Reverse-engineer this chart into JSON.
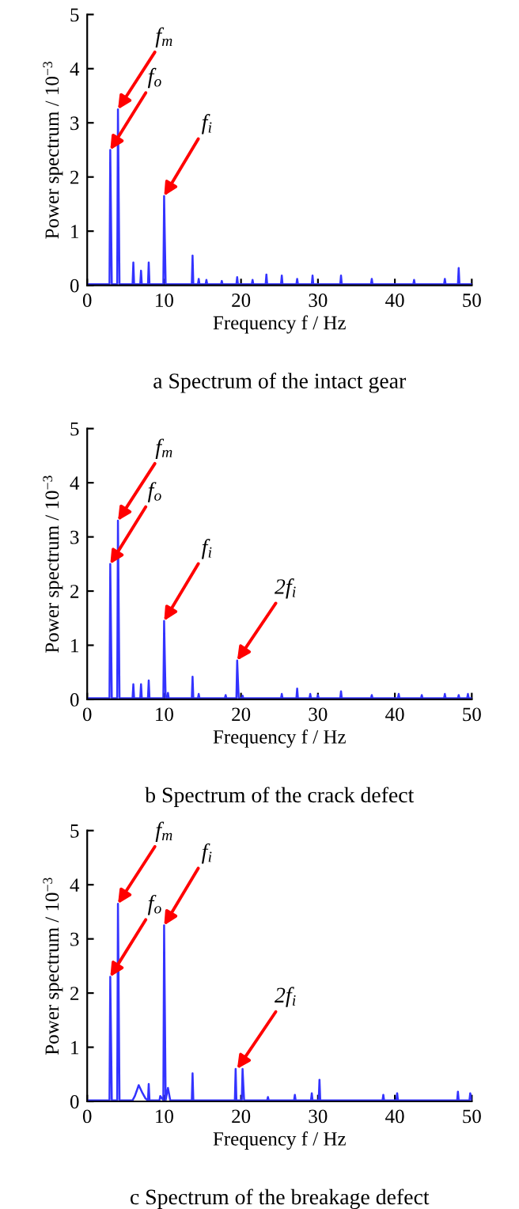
{
  "chart_data": [
    {
      "type": "line",
      "title": "a Spectrum of the intact gear",
      "xlabel": "Frequency f / Hz",
      "ylabel": "Power spectrum / 10$^{−3}$",
      "xlim": [
        0,
        50
      ],
      "ylim": [
        0,
        5
      ],
      "xticks": [
        0,
        10,
        20,
        30,
        40,
        50
      ],
      "yticks": [
        0,
        1,
        2,
        3,
        4,
        5
      ],
      "x": [
        0,
        2.9,
        3.0,
        3.1,
        3.2,
        3.9,
        4.0,
        4.1,
        4.2,
        5.9,
        6.0,
        6.1,
        6.9,
        7.0,
        7.1,
        7.9,
        8.0,
        8.1,
        9.9,
        10.0,
        10.1,
        10.2,
        13.6,
        13.7,
        13.8,
        14.4,
        14.5,
        14.6,
        15.4,
        15.5,
        15.6,
        17.4,
        17.5,
        17.6,
        19.4,
        19.5,
        19.6,
        21.4,
        21.5,
        21.6,
        23.2,
        23.3,
        23.4,
        25.2,
        25.3,
        25.4,
        27.2,
        27.3,
        27.4,
        29.2,
        29.3,
        29.4,
        32.9,
        33.0,
        33.1,
        36.9,
        37.0,
        37.1,
        42.4,
        42.5,
        42.6,
        46.4,
        46.5,
        46.6,
        48.2,
        48.3,
        48.4,
        50
      ],
      "series": [
        {
          "color": "#3333ff",
          "values": [
            0.02,
            0.02,
            2.5,
            1.25,
            0.02,
            0.02,
            3.25,
            1.6,
            0.02,
            0.02,
            0.42,
            0.02,
            0.02,
            0.27,
            0.02,
            0.02,
            0.42,
            0.02,
            0.02,
            1.65,
            0.8,
            0.02,
            0.02,
            0.55,
            0.02,
            0.02,
            0.12,
            0.02,
            0.02,
            0.1,
            0.02,
            0.02,
            0.08,
            0.02,
            0.02,
            0.15,
            0.02,
            0.02,
            0.1,
            0.02,
            0.02,
            0.2,
            0.02,
            0.02,
            0.18,
            0.02,
            0.02,
            0.12,
            0.02,
            0.02,
            0.18,
            0.02,
            0.02,
            0.18,
            0.02,
            0.02,
            0.12,
            0.02,
            0.02,
            0.1,
            0.02,
            0.02,
            0.12,
            0.02,
            0.02,
            0.32,
            0.02,
            0.02
          ]
        }
      ],
      "annotations": [
        {
          "text": "f$_{m}$",
          "x": 4.0,
          "y": 3.25
        },
        {
          "text": "f$_{o}$",
          "x": 3.0,
          "y": 2.5
        },
        {
          "text": "f$_{i}$",
          "x": 10.0,
          "y": 1.65
        }
      ]
    },
    {
      "type": "line",
      "title": "b Spectrum of the crack defect",
      "xlabel": "Frequency f / Hz",
      "ylabel": "Power spectrum / 10$^{−3}$",
      "xlim": [
        0,
        50
      ],
      "ylim": [
        0,
        5
      ],
      "xticks": [
        0,
        10,
        20,
        30,
        40,
        50
      ],
      "yticks": [
        0,
        1,
        2,
        3,
        4,
        5
      ],
      "x": [
        0,
        2.9,
        3.0,
        3.1,
        3.2,
        3.9,
        4.0,
        4.1,
        4.2,
        5.9,
        6.0,
        6.1,
        6.9,
        7.0,
        7.1,
        7.9,
        8.0,
        8.1,
        9.9,
        10.0,
        10.1,
        10.2,
        10.4,
        10.5,
        10.6,
        13.6,
        13.7,
        13.8,
        14.4,
        14.5,
        14.6,
        17.9,
        18.0,
        18.1,
        19.4,
        19.5,
        19.6,
        19.7,
        20.1,
        20.2,
        20.3,
        25.2,
        25.3,
        25.4,
        27.2,
        27.3,
        27.4,
        28.9,
        29.0,
        29.1,
        29.9,
        30.0,
        30.1,
        32.9,
        33.0,
        33.1,
        36.9,
        37.0,
        37.1,
        40.4,
        40.5,
        40.6,
        43.4,
        43.5,
        43.6,
        46.4,
        46.5,
        46.6,
        48.2,
        48.3,
        48.4,
        49.4,
        49.5,
        49.6,
        50
      ],
      "series": [
        {
          "color": "#3333ff",
          "values": [
            0.02,
            0.02,
            2.5,
            1.25,
            0.02,
            0.02,
            3.3,
            1.65,
            0.02,
            0.02,
            0.28,
            0.02,
            0.02,
            0.28,
            0.02,
            0.02,
            0.35,
            0.02,
            0.02,
            1.45,
            0.7,
            0.02,
            0.02,
            0.12,
            0.02,
            0.02,
            0.42,
            0.02,
            0.02,
            0.1,
            0.02,
            0.02,
            0.08,
            0.02,
            0.02,
            0.72,
            0.35,
            0.02,
            0.02,
            0.07,
            0.02,
            0.02,
            0.1,
            0.02,
            0.02,
            0.2,
            0.02,
            0.02,
            0.1,
            0.02,
            0.02,
            0.08,
            0.02,
            0.02,
            0.15,
            0.02,
            0.02,
            0.08,
            0.02,
            0.02,
            0.1,
            0.02,
            0.02,
            0.08,
            0.02,
            0.02,
            0.1,
            0.02,
            0.02,
            0.08,
            0.02,
            0.02,
            0.1,
            0.02,
            0.02
          ]
        }
      ],
      "annotations": [
        {
          "text": "f$_{m}$",
          "x": 4.0,
          "y": 3.3
        },
        {
          "text": "f$_{o}$",
          "x": 3.0,
          "y": 2.5
        },
        {
          "text": "f$_{i}$",
          "x": 10.0,
          "y": 1.45
        },
        {
          "text": "2f$_{i}$",
          "x": 19.5,
          "y": 0.72
        }
      ]
    },
    {
      "type": "line",
      "title": "c Spectrum of the breakage defect",
      "xlabel": "Frequency f / Hz",
      "ylabel": "Power spectrum / 10$^{−3}$",
      "xlim": [
        0,
        50
      ],
      "ylim": [
        0,
        5
      ],
      "xticks": [
        0,
        10,
        20,
        30,
        40,
        50
      ],
      "yticks": [
        0,
        1,
        2,
        3,
        4,
        5
      ],
      "x": [
        0,
        2.9,
        3.0,
        3.1,
        3.2,
        3.9,
        4.0,
        4.1,
        4.2,
        5.9,
        6.2,
        6.7,
        7.2,
        7.6,
        7.9,
        8.0,
        8.1,
        9.4,
        9.5,
        9.9,
        10.0,
        10.1,
        10.2,
        10.5,
        10.8,
        13.6,
        13.7,
        13.8,
        19.2,
        19.3,
        19.4,
        20.1,
        20.2,
        20.3,
        20.4,
        23.4,
        23.5,
        23.6,
        26.9,
        27.0,
        27.1,
        29.1,
        29.2,
        29.3,
        30.1,
        30.2,
        30.3,
        38.4,
        38.5,
        38.6,
        40.2,
        40.3,
        40.4,
        48.1,
        48.2,
        48.3,
        49.7,
        49.8,
        50
      ],
      "series": [
        {
          "color": "#3333ff",
          "values": [
            0.02,
            0.02,
            2.3,
            1.2,
            0.02,
            0.02,
            3.65,
            1.85,
            0.02,
            0.02,
            0.1,
            0.3,
            0.15,
            0.05,
            0.02,
            0.32,
            0.02,
            0.02,
            0.1,
            0.02,
            3.25,
            1.65,
            0.02,
            0.25,
            0.02,
            0.02,
            0.52,
            0.02,
            0.02,
            0.6,
            0.02,
            0.02,
            0.6,
            0.3,
            0.02,
            0.02,
            0.08,
            0.02,
            0.02,
            0.12,
            0.02,
            0.02,
            0.15,
            0.02,
            0.02,
            0.4,
            0.02,
            0.02,
            0.12,
            0.02,
            0.02,
            0.15,
            0.02,
            0.02,
            0.18,
            0.02,
            0.02,
            0.15,
            0.02
          ]
        }
      ],
      "annotations": [
        {
          "text": "f$_{m}$",
          "x": 4.0,
          "y": 3.65
        },
        {
          "text": "f$_{o}$",
          "x": 3.0,
          "y": 2.3
        },
        {
          "text": "f$_{i}$",
          "x": 10.0,
          "y": 3.25
        },
        {
          "text": "2f$_{i}$",
          "x": 19.5,
          "y": 0.6
        }
      ]
    }
  ]
}
